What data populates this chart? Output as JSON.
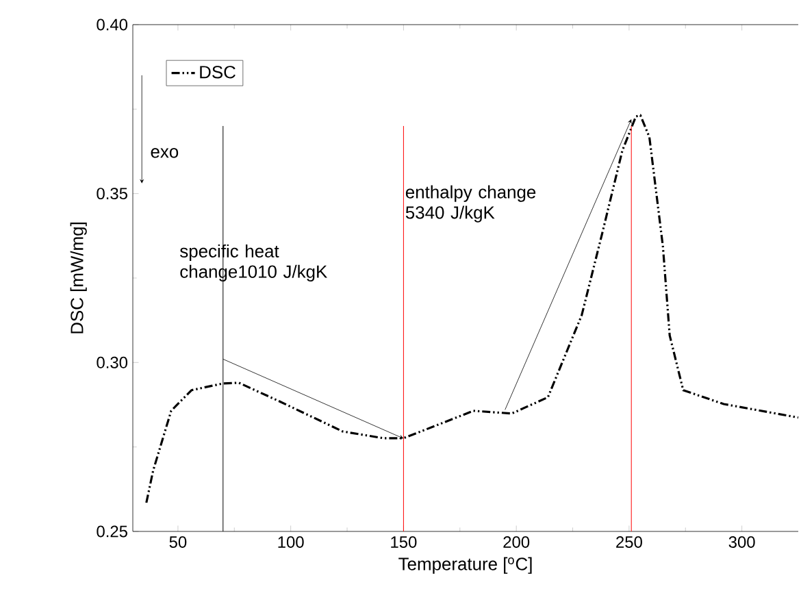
{
  "chart_data": {
    "type": "line",
    "xlabel": "Temperature [$^{o}$C]",
    "ylabel": "DSC [mW/mg]",
    "xlim": [
      30,
      325
    ],
    "ylim": [
      0.25,
      0.4
    ],
    "xticks": [
      50,
      100,
      150,
      200,
      250,
      300
    ],
    "yticks": [
      {
        "value": 0.25,
        "label": "0.25"
      },
      {
        "value": 0.3,
        "label": "0.30"
      },
      {
        "value": 0.35,
        "label": "0.35"
      },
      {
        "value": 0.4,
        "label": "0.40"
      }
    ],
    "series": [
      {
        "name": "DSC",
        "color": "#000000",
        "x": [
          36,
          39,
          47,
          56,
          70,
          77,
          95,
          123,
          141,
          150,
          165,
          181,
          198,
          214,
          229,
          238,
          247,
          253,
          255,
          259,
          265,
          268,
          274,
          292,
          325
        ],
        "values": [
          0.2585,
          0.268,
          0.2857,
          0.2918,
          0.2938,
          0.294,
          0.2885,
          0.2796,
          0.2776,
          0.2776,
          0.2815,
          0.2857,
          0.2849,
          0.2897,
          0.314,
          0.338,
          0.3627,
          0.3728,
          0.3732,
          0.3667,
          0.3343,
          0.308,
          0.2918,
          0.2877,
          0.2837
        ]
      }
    ],
    "ref_lines": [
      {
        "axis": "x",
        "value": 70,
        "color": "#000000"
      },
      {
        "axis": "x",
        "value": 150,
        "color": "#ff0000"
      },
      {
        "axis": "x",
        "value": 251,
        "color": "#ff0000"
      }
    ],
    "annotations": [
      "exo",
      "specific heat change1010 J/kgK",
      "enthalpy change 5340 J/kgK"
    ],
    "legend": "top left",
    "marker": "none",
    "line_style": "dashed",
    "grid": false
  }
}
